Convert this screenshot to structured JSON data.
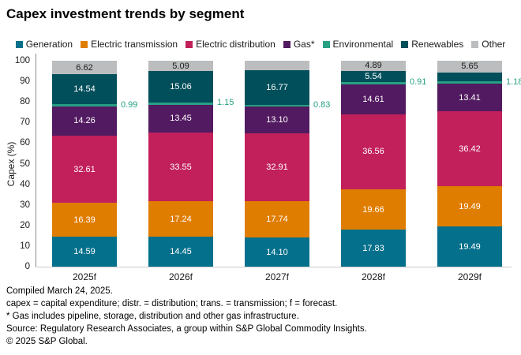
{
  "title": "Capex investment trends by segment",
  "chart_data": {
    "type": "bar",
    "stacked": true,
    "title": "Capex investment trends by segment",
    "categories": [
      "2025f",
      "2026f",
      "2027f",
      "2028f",
      "2029f"
    ],
    "series": [
      {
        "name": "Generation",
        "color": "#05708c",
        "values": [
          14.59,
          14.45,
          14.1,
          17.83,
          19.49
        ],
        "label_color": "#ffffff"
      },
      {
        "name": "Electric transmission",
        "color": "#df7d00",
        "values": [
          16.39,
          17.24,
          17.74,
          19.66,
          19.49
        ],
        "label_color": "#ffffff"
      },
      {
        "name": "Electric distribution",
        "color": "#c2205b",
        "values": [
          32.61,
          33.55,
          32.91,
          36.56,
          36.42
        ],
        "label_color": "#ffffff"
      },
      {
        "name": "Gas*",
        "color": "#521a60",
        "values": [
          14.26,
          13.45,
          13.1,
          14.61,
          13.41
        ],
        "label_color": "#ffffff"
      },
      {
        "name": "Environmental",
        "color": "#27a083",
        "values": [
          0.99,
          1.15,
          0.83,
          0.91,
          1.18
        ],
        "label_color": "#27a083",
        "label_outside": true
      },
      {
        "name": "Renewables",
        "color": "#004f5a",
        "values": [
          14.54,
          15.06,
          16.77,
          5.54,
          4.34
        ],
        "label_color": "#ffffff"
      },
      {
        "name": "Other",
        "color": "#bbbdbf",
        "values": [
          6.62,
          5.09,
          4.55,
          4.89,
          5.65
        ],
        "label_color": "#1a1a1a"
      }
    ],
    "ylabel": "Capex (%)",
    "ylim": [
      0,
      100
    ],
    "yticks": [
      0,
      10,
      20,
      30,
      40,
      50,
      60,
      70,
      80,
      90,
      100
    ],
    "grid": false,
    "legend_position": "top"
  },
  "footnotes": [
    "Compiled March 24, 2025.",
    "capex = capital expenditure; distr. = distribution; trans. = transmission; f = forecast.",
    "* Gas includes pipeline, storage, distribution and other gas infrastructure.",
    "Source: Regulatory Research Associates, a group within S&P Global Commodity Insights.",
    "© 2025 S&P Global."
  ]
}
